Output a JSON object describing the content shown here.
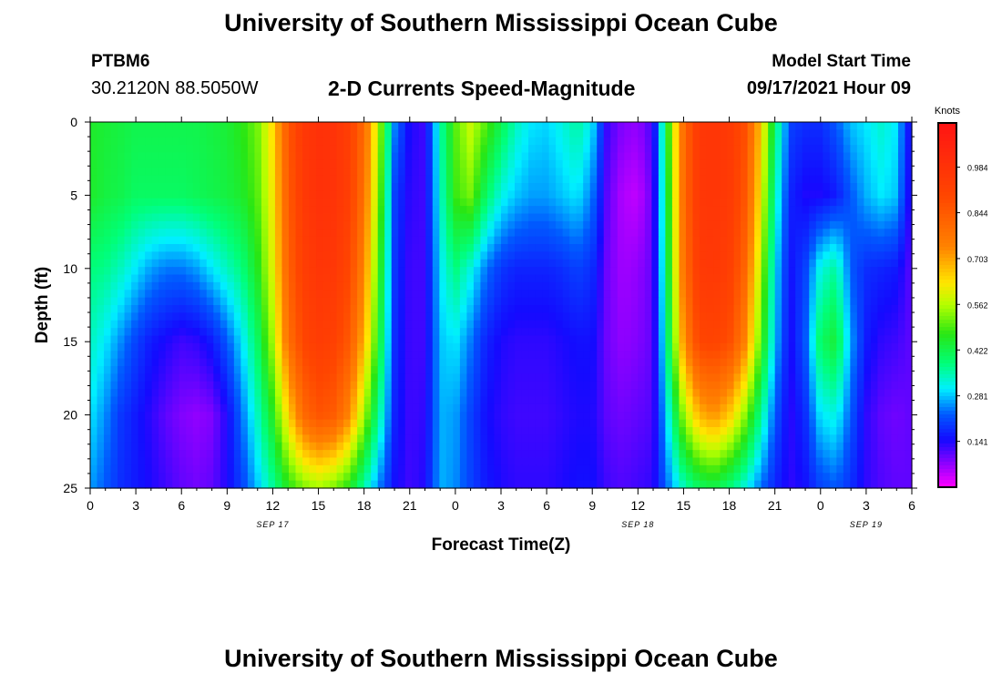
{
  "header": {
    "title": "University of Southern Mississippi Ocean Cube",
    "station_id": "PTBM6",
    "station_coords": "30.2120N  88.5050W",
    "subtitle": "2-D Currents Speed-Magnitude",
    "model_start_label": "Model Start Time",
    "model_start_value": "09/17/2021 Hour 09"
  },
  "footer": {
    "title": "University of Southern Mississippi Ocean Cube"
  },
  "chart_data": {
    "type": "heatmap",
    "title": "2-D Currents Speed-Magnitude",
    "xlabel": "Forecast Time(Z)",
    "ylabel": "Depth (ft)",
    "x_range_hours": [
      0,
      54
    ],
    "y_range_ft": [
      0,
      25
    ],
    "x_tick_labels": [
      "0",
      "3",
      "6",
      "9",
      "12",
      "15",
      "18",
      "21",
      "0",
      "3",
      "6",
      "9",
      "12",
      "15",
      "18",
      "21",
      "0",
      "3",
      "6"
    ],
    "y_tick_labels": [
      "0",
      "5",
      "10",
      "15",
      "20",
      "25"
    ],
    "date_labels": [
      {
        "text": "SEP 17",
        "at_hour": 12
      },
      {
        "text": "SEP 18",
        "at_hour": 36
      },
      {
        "text": "SEP 19",
        "at_hour": 51
      }
    ],
    "colorbar": {
      "label": "Knots",
      "min": 0.0,
      "max": 1.12,
      "tick_labels": [
        "0.141",
        "0.281",
        "0.422",
        "0.562",
        "0.703",
        "0.844",
        "0.984"
      ]
    },
    "grid_hours": [
      0,
      1,
      2,
      3,
      4,
      5,
      6,
      7,
      8,
      9,
      10,
      11,
      12,
      13,
      14,
      15,
      16,
      17,
      18,
      19,
      20,
      21,
      22,
      23,
      24,
      25,
      26,
      27,
      28,
      29,
      30,
      31,
      32,
      33,
      34,
      35,
      36,
      37,
      38,
      39,
      40,
      41,
      42,
      43,
      44,
      45,
      46,
      47,
      48,
      49,
      50,
      51,
      52,
      53,
      54
    ],
    "grid_depths_ft": [
      0,
      5,
      10,
      15,
      20,
      25
    ],
    "speed_knots": [
      [
        0.45,
        0.44,
        0.43,
        0.42,
        0.42,
        0.42,
        0.42,
        0.42,
        0.43,
        0.44,
        0.47,
        0.52,
        0.64,
        0.85,
        0.96,
        0.99,
        0.98,
        0.93,
        0.8,
        0.55,
        0.25,
        0.14,
        0.12,
        0.35,
        0.5,
        0.58,
        0.5,
        0.42,
        0.34,
        0.3,
        0.29,
        0.32,
        0.36,
        0.3,
        0.12,
        0.08,
        0.07,
        0.12,
        0.48,
        0.8,
        0.96,
        0.97,
        0.95,
        0.88,
        0.68,
        0.4,
        0.2,
        0.18,
        0.18,
        0.22,
        0.28,
        0.3,
        0.33,
        0.3,
        0.12
      ],
      [
        0.45,
        0.43,
        0.42,
        0.4,
        0.4,
        0.4,
        0.4,
        0.41,
        0.42,
        0.43,
        0.45,
        0.5,
        0.62,
        0.84,
        0.95,
        0.99,
        0.98,
        0.93,
        0.78,
        0.52,
        0.2,
        0.13,
        0.12,
        0.33,
        0.48,
        0.52,
        0.4,
        0.32,
        0.28,
        0.26,
        0.26,
        0.28,
        0.3,
        0.24,
        0.1,
        0.05,
        0.04,
        0.1,
        0.46,
        0.8,
        0.96,
        0.97,
        0.95,
        0.86,
        0.64,
        0.35,
        0.17,
        0.14,
        0.14,
        0.16,
        0.22,
        0.27,
        0.3,
        0.28,
        0.11
      ],
      [
        0.38,
        0.37,
        0.34,
        0.3,
        0.26,
        0.24,
        0.24,
        0.26,
        0.3,
        0.34,
        0.38,
        0.46,
        0.6,
        0.82,
        0.93,
        0.97,
        0.96,
        0.9,
        0.74,
        0.48,
        0.19,
        0.12,
        0.12,
        0.3,
        0.38,
        0.32,
        0.24,
        0.19,
        0.17,
        0.17,
        0.17,
        0.18,
        0.2,
        0.18,
        0.09,
        0.06,
        0.07,
        0.1,
        0.44,
        0.78,
        0.95,
        0.96,
        0.93,
        0.82,
        0.58,
        0.3,
        0.15,
        0.2,
        0.32,
        0.36,
        0.22,
        0.18,
        0.17,
        0.16,
        0.1
      ],
      [
        0.34,
        0.3,
        0.25,
        0.2,
        0.16,
        0.14,
        0.12,
        0.13,
        0.16,
        0.22,
        0.3,
        0.4,
        0.55,
        0.78,
        0.9,
        0.94,
        0.92,
        0.85,
        0.68,
        0.44,
        0.18,
        0.12,
        0.12,
        0.28,
        0.3,
        0.24,
        0.17,
        0.14,
        0.13,
        0.13,
        0.13,
        0.14,
        0.15,
        0.15,
        0.09,
        0.07,
        0.08,
        0.1,
        0.4,
        0.72,
        0.9,
        0.91,
        0.88,
        0.75,
        0.52,
        0.28,
        0.14,
        0.22,
        0.4,
        0.44,
        0.26,
        0.16,
        0.13,
        0.12,
        0.1
      ],
      [
        0.3,
        0.25,
        0.19,
        0.16,
        0.13,
        0.1,
        0.08,
        0.07,
        0.08,
        0.14,
        0.24,
        0.34,
        0.46,
        0.64,
        0.8,
        0.86,
        0.84,
        0.74,
        0.55,
        0.36,
        0.17,
        0.12,
        0.13,
        0.27,
        0.26,
        0.2,
        0.15,
        0.13,
        0.12,
        0.12,
        0.12,
        0.13,
        0.14,
        0.14,
        0.1,
        0.09,
        0.1,
        0.11,
        0.32,
        0.54,
        0.68,
        0.72,
        0.66,
        0.54,
        0.38,
        0.22,
        0.13,
        0.18,
        0.3,
        0.32,
        0.22,
        0.13,
        0.1,
        0.09,
        0.1
      ],
      [
        0.26,
        0.22,
        0.18,
        0.16,
        0.14,
        0.12,
        0.1,
        0.09,
        0.1,
        0.14,
        0.2,
        0.28,
        0.36,
        0.46,
        0.52,
        0.55,
        0.52,
        0.46,
        0.35,
        0.24,
        0.15,
        0.12,
        0.14,
        0.27,
        0.25,
        0.2,
        0.16,
        0.14,
        0.13,
        0.13,
        0.13,
        0.14,
        0.15,
        0.15,
        0.12,
        0.11,
        0.12,
        0.13,
        0.24,
        0.34,
        0.4,
        0.42,
        0.38,
        0.32,
        0.24,
        0.17,
        0.13,
        0.15,
        0.2,
        0.22,
        0.18,
        0.13,
        0.11,
        0.1,
        0.1
      ]
    ]
  }
}
